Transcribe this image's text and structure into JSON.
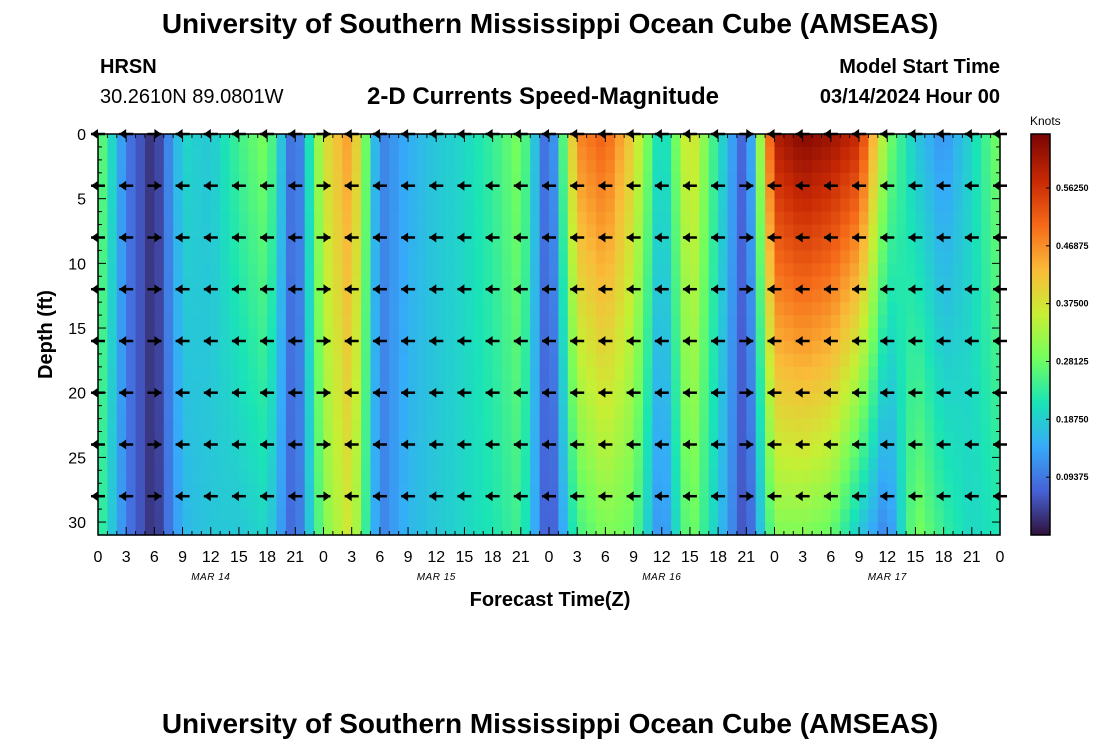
{
  "header": {
    "title": "University of Southern Mississippi Ocean Cube (AMSEAS)",
    "station": "HRSN",
    "coords": "30.2610N  89.0801W",
    "subtitle": "2-D Currents Speed-Magnitude",
    "model_label": "Model Start Time",
    "model_time": "03/14/2024 Hour 00"
  },
  "footer": {
    "title": "University of Southern Mississippi Ocean Cube (AMSEAS)"
  },
  "colors": {
    "scale": [
      "#30123b",
      "#4662d7",
      "#36aaf9",
      "#1ae4b6",
      "#72fe5e",
      "#c7ef34",
      "#fabb39",
      "#f66b19",
      "#ca2a04",
      "#7a0403"
    ]
  },
  "chart_data": {
    "type": "heatmap",
    "title": "2-D Currents Speed-Magnitude",
    "xlabel": "Forecast Time(Z)",
    "ylabel": "Depth (ft)",
    "colorbar_label": "Knots",
    "colorbar_ticks": [
      "0.09375",
      "0.18750",
      "0.28125",
      "0.37500",
      "0.46875",
      "0.56250"
    ],
    "colorbar_tick_values": [
      0.09375,
      0.1875,
      0.28125,
      0.375,
      0.46875,
      0.5625
    ],
    "colorbar_range": [
      0,
      0.65
    ],
    "xlim": [
      0,
      96
    ],
    "ylim": [
      0,
      31
    ],
    "x_tick_labels": [
      "0",
      "3",
      "6",
      "9",
      "12",
      "15",
      "18",
      "21",
      "0",
      "3",
      "6",
      "9",
      "12",
      "15",
      "18",
      "21",
      "0",
      "3",
      "6",
      "9",
      "12",
      "15",
      "18",
      "21",
      "0",
      "3",
      "6",
      "9",
      "12",
      "15",
      "18",
      "21",
      "0"
    ],
    "y_tick_labels": [
      "0",
      "5",
      "10",
      "15",
      "20",
      "25",
      "30"
    ],
    "y_tick_values": [
      0,
      5,
      10,
      15,
      20,
      25,
      30
    ],
    "date_labels": [
      "MAR 14",
      "MAR 15",
      "MAR 16",
      "MAR 17"
    ],
    "date_label_hours": [
      12,
      36,
      60,
      84
    ],
    "depth_rows": [
      0,
      4,
      8,
      12,
      16,
      20,
      24,
      28
    ],
    "time_hours_sampled": [
      0,
      3,
      6,
      9,
      12,
      15,
      18,
      21,
      24,
      27,
      30,
      33,
      36,
      39,
      42,
      45,
      48,
      51,
      54,
      57,
      60,
      63,
      66,
      69,
      72,
      75,
      78,
      81,
      84,
      87,
      90,
      93,
      96
    ],
    "speed_by_hour_surface": [
      0.3,
      0.1,
      0.02,
      0.2,
      0.18,
      0.25,
      0.3,
      0.05,
      0.38,
      0.47,
      0.1,
      0.15,
      0.18,
      0.2,
      0.24,
      0.3,
      0.05,
      0.48,
      0.52,
      0.4,
      0.18,
      0.4,
      0.22,
      0.05,
      0.6,
      0.64,
      0.62,
      0.58,
      0.3,
      0.18,
      0.12,
      0.2,
      0.3
    ],
    "speed_by_hour_bottom": [
      0.26,
      0.1,
      0.02,
      0.16,
      0.18,
      0.18,
      0.2,
      0.06,
      0.3,
      0.38,
      0.1,
      0.16,
      0.18,
      0.2,
      0.22,
      0.25,
      0.04,
      0.25,
      0.3,
      0.28,
      0.1,
      0.3,
      0.18,
      0.04,
      0.3,
      0.3,
      0.28,
      0.18,
      0.1,
      0.3,
      0.24,
      0.2,
      0.22
    ],
    "arrow_direction": "mostly westward (left) with eastward reversals near hours 6, 24 and 68"
  }
}
